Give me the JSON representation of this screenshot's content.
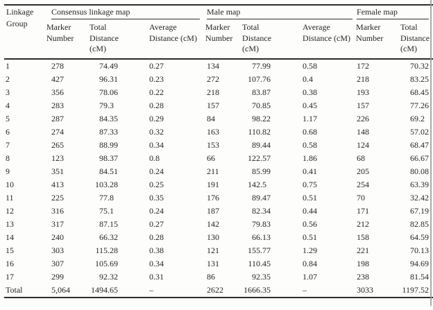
{
  "header": {
    "linkage_group": "Linkage\nGroup",
    "groups": [
      "Consensus linkage map",
      "Male map",
      "Female map"
    ],
    "sub": [
      "Marker\nNumber",
      "Total\nDistance\n(cM)",
      "Average\nDistance (cM)",
      "Marker\nNumber",
      "Total\nDistance\n(cM)",
      "Average\nDistance (cM)",
      "Marker\nNumber",
      "Total\nDistance\n(cM)"
    ]
  },
  "table": {
    "rows": [
      {
        "group": "1",
        "c_marker": "278",
        "c_total": "74.49",
        "c_avg": "0.27",
        "m_marker": "134",
        "m_total": "77.99",
        "m_avg": "0.58",
        "f_marker": "172",
        "f_total": "70.32"
      },
      {
        "group": "2",
        "c_marker": "427",
        "c_total": "96.31",
        "c_avg": "0.23",
        "m_marker": "272",
        "m_total": "107.76",
        "m_avg": "0.4",
        "f_marker": "218",
        "f_total": "83.25"
      },
      {
        "group": "3",
        "c_marker": "356",
        "c_total": "78.06",
        "c_avg": "0.22",
        "m_marker": "218",
        "m_total": "83.87",
        "m_avg": "0.38",
        "f_marker": "193",
        "f_total": "68.45"
      },
      {
        "group": "4",
        "c_marker": "283",
        "c_total": "79.3",
        "c_avg": "0.28",
        "m_marker": "157",
        "m_total": "70.85",
        "m_avg": "0.45",
        "f_marker": "157",
        "f_total": "77.26"
      },
      {
        "group": "5",
        "c_marker": "287",
        "c_total": "84.35",
        "c_avg": "0.29",
        "m_marker": "84",
        "m_total": "98.22",
        "m_avg": "1.17",
        "f_marker": "226",
        "f_total": "69.2"
      },
      {
        "group": "6",
        "c_marker": "274",
        "c_total": "87.33",
        "c_avg": "0.32",
        "m_marker": "163",
        "m_total": "110.82",
        "m_avg": "0.68",
        "f_marker": "148",
        "f_total": "57.02"
      },
      {
        "group": "7",
        "c_marker": "265",
        "c_total": "88.99",
        "c_avg": "0.34",
        "m_marker": "153",
        "m_total": "89.44",
        "m_avg": "0.58",
        "f_marker": "124",
        "f_total": "68.47"
      },
      {
        "group": "8",
        "c_marker": "123",
        "c_total": "98.37",
        "c_avg": "0.8",
        "m_marker": "66",
        "m_total": "122.57",
        "m_avg": "1.86",
        "f_marker": "68",
        "f_total": "66.67"
      },
      {
        "group": "9",
        "c_marker": "351",
        "c_total": "84.51",
        "c_avg": "0.24",
        "m_marker": "211",
        "m_total": "85.99",
        "m_avg": "0.41",
        "f_marker": "205",
        "f_total": "80.08"
      },
      {
        "group": "10",
        "c_marker": "413",
        "c_total": "103.28",
        "c_avg": "0.25",
        "m_marker": "191",
        "m_total": "142.5",
        "m_avg": "0.75",
        "f_marker": "254",
        "f_total": "63.39"
      },
      {
        "group": "11",
        "c_marker": "225",
        "c_total": "77.8",
        "c_avg": "0.35",
        "m_marker": "176",
        "m_total": "89.47",
        "m_avg": "0.51",
        "f_marker": "70",
        "f_total": "32.42"
      },
      {
        "group": "12",
        "c_marker": "316",
        "c_total": "75.1",
        "c_avg": "0.24",
        "m_marker": "187",
        "m_total": "82.34",
        "m_avg": "0.44",
        "f_marker": "171",
        "f_total": "67.19"
      },
      {
        "group": "13",
        "c_marker": "317",
        "c_total": "87.15",
        "c_avg": "0.27",
        "m_marker": "142",
        "m_total": "79.83",
        "m_avg": "0.56",
        "f_marker": "212",
        "f_total": "82.85"
      },
      {
        "group": "14",
        "c_marker": "240",
        "c_total": "66.32",
        "c_avg": "0.28",
        "m_marker": "130",
        "m_total": "66.13",
        "m_avg": "0.51",
        "f_marker": "158",
        "f_total": "64.59"
      },
      {
        "group": "15",
        "c_marker": "303",
        "c_total": "115.28",
        "c_avg": "0.38",
        "m_marker": "121",
        "m_total": "155.77",
        "m_avg": "1.29",
        "f_marker": "221",
        "f_total": "70.13"
      },
      {
        "group": "16",
        "c_marker": "307",
        "c_total": "105.69",
        "c_avg": "0.34",
        "m_marker": "131",
        "m_total": "110.45",
        "m_avg": "0.84",
        "f_marker": "198",
        "f_total": "94.69"
      },
      {
        "group": "17",
        "c_marker": "299",
        "c_total": "92.32",
        "c_avg": "0.31",
        "m_marker": "86",
        "m_total": "92.35",
        "m_avg": "1.07",
        "f_marker": "238",
        "f_total": "81.54"
      },
      {
        "group": "Total",
        "c_marker": "5,064",
        "c_total": "1494.65",
        "c_avg": "–",
        "m_marker": "2622",
        "m_total": "1666.35",
        "m_avg": "–",
        "f_marker": "3033",
        "f_total": "1197.52"
      }
    ]
  }
}
